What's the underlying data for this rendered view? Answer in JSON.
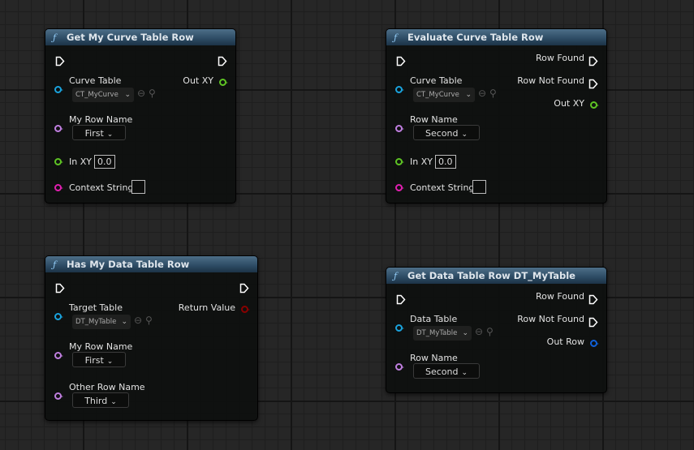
{
  "nodes": [
    {
      "title": "Get My Curve Table Row",
      "icon": "function-icon",
      "inputs": {
        "table_label": "Curve Table",
        "table_value": "CT_MyCurve",
        "row_label": "My Row Name",
        "row_value": "First",
        "xy_label": "In XY",
        "xy_value": "0.0",
        "context_label": "Context String",
        "context_value": ""
      },
      "outputs": {
        "out_label": "Out XY"
      }
    },
    {
      "title": "Evaluate Curve Table Row",
      "icon": "function-icon",
      "inputs": {
        "table_label": "Curve Table",
        "table_value": "CT_MyCurve",
        "row_label": "Row Name",
        "row_value": "Second",
        "xy_label": "In XY",
        "xy_value": "0.0",
        "context_label": "Context String",
        "context_value": ""
      },
      "outputs": {
        "found_label": "Row Found",
        "not_found_label": "Row Not Found",
        "out_label": "Out XY"
      }
    },
    {
      "title": "Has My Data Table Row",
      "icon": "function-icon",
      "inputs": {
        "table_label": "Target Table",
        "table_value": "DT_MyTable",
        "row_label": "My Row Name",
        "row_value": "First",
        "other_label": "Other Row Name",
        "other_value": "Third"
      },
      "outputs": {
        "out_label": "Return Value"
      }
    },
    {
      "title": "Get Data Table Row DT_MyTable",
      "icon": "function-icon",
      "inputs": {
        "table_label": "Data Table",
        "table_value": "DT_MyTable",
        "row_label": "Row Name",
        "row_value": "Second"
      },
      "outputs": {
        "found_label": "Row Found",
        "not_found_label": "Row Not Found",
        "out_label": "Out Row"
      }
    }
  ],
  "colors": {
    "object": "#1aa3dd",
    "name": "#c07fe0",
    "vector2d": "#5ec424",
    "string": "#e01fb0",
    "bool": "#8a0000",
    "struct": "#1060d8",
    "exec": "#ffffff",
    "header": "#2c4a63"
  }
}
